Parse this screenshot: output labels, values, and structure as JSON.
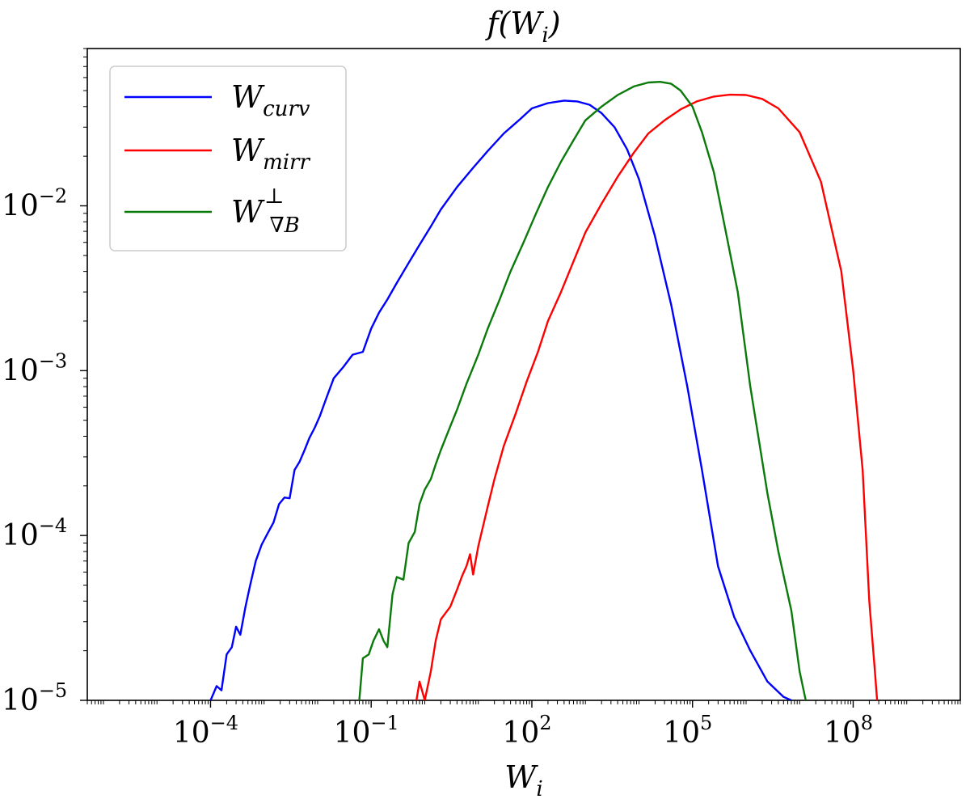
{
  "chart_data": {
    "type": "line",
    "title": "f(W_i)",
    "title_parts": {
      "base": "f(W",
      "sub": "i",
      "close": ")"
    },
    "xlabel": "W_i",
    "xlabel_parts": {
      "base": "W",
      "sub": "i"
    },
    "ylabel": "",
    "xscale": "log",
    "yscale": "log",
    "xlim": [
      5e-07,
      10000000000.0
    ],
    "ylim": [
      1e-05,
      0.09
    ],
    "xticks": [
      {
        "value": 0.0001,
        "base": "10",
        "exp": "−4"
      },
      {
        "value": 0.1,
        "base": "10",
        "exp": "−1"
      },
      {
        "value": 100.0,
        "base": "10",
        "exp": "2"
      },
      {
        "value": 100000.0,
        "base": "10",
        "exp": "5"
      },
      {
        "value": 100000000.0,
        "base": "10",
        "exp": "8"
      }
    ],
    "yticks": [
      {
        "value": 1e-05,
        "base": "10",
        "exp": "−5"
      },
      {
        "value": 0.0001,
        "base": "10",
        "exp": "−4"
      },
      {
        "value": 0.001,
        "base": "10",
        "exp": "−3"
      },
      {
        "value": 0.01,
        "base": "10",
        "exp": "−2"
      }
    ],
    "legend_position": "top-left",
    "series": [
      {
        "name": "W_curv",
        "label_base": "W",
        "label_sub": "curv",
        "label_sup": "",
        "color": "#0000ff",
        "x": [
          0.0001,
          0.00013,
          0.00016,
          0.0002,
          0.00025,
          0.0003,
          0.00036,
          0.00045,
          0.00055,
          0.0007,
          0.0009,
          0.0012,
          0.0015,
          0.0019,
          0.0024,
          0.003,
          0.0037,
          0.0046,
          0.0057,
          0.007,
          0.0088,
          0.011,
          0.015,
          0.02,
          0.03,
          0.045,
          0.07,
          0.1,
          0.14,
          0.2,
          0.3,
          0.5,
          0.8,
          1.3,
          2,
          4,
          8,
          15,
          30,
          60,
          100,
          200,
          400,
          700,
          1200,
          2000,
          3500,
          6000,
          10000,
          20000,
          40000,
          80000,
          150000,
          300000,
          600000,
          1200000,
          2500000,
          5000000,
          7000000
        ],
        "y": [
          1e-05,
          1.22e-05,
          1.15e-05,
          1.9e-05,
          2.1e-05,
          2.8e-05,
          2.5e-05,
          3.7e-05,
          5e-05,
          7e-05,
          8.8e-05,
          0.000105,
          0.00012,
          0.000155,
          0.00017,
          0.000168,
          0.00025,
          0.00028,
          0.00033,
          0.00039,
          0.00045,
          0.00053,
          0.0007,
          0.0009,
          0.00105,
          0.00125,
          0.0013,
          0.0018,
          0.00225,
          0.0027,
          0.0034,
          0.0045,
          0.0058,
          0.0075,
          0.0095,
          0.013,
          0.017,
          0.0215,
          0.0275,
          0.0335,
          0.039,
          0.042,
          0.0435,
          0.043,
          0.041,
          0.0365,
          0.03,
          0.022,
          0.0145,
          0.0065,
          0.0025,
          0.0008,
          0.00025,
          6.5e-05,
          3.2e-05,
          2e-05,
          1.3e-05,
          1.05e-05,
          1e-05
        ]
      },
      {
        "name": "W_mirr",
        "label_base": "W",
        "label_sub": "mirr",
        "label_sup": "",
        "color": "#ff0000",
        "x": [
          0.7,
          0.8,
          1.0,
          1.3,
          1.6,
          2.0,
          3.0,
          4.0,
          5.0,
          6.0,
          7.0,
          8.0,
          10.0,
          15,
          20,
          30,
          50,
          80,
          130,
          200,
          350,
          600,
          1000,
          2000,
          4000,
          8000,
          15000,
          30000,
          60000,
          120000,
          250000,
          500000,
          1000000,
          2000000,
          4000000,
          10000000,
          25000000,
          60000000,
          100000000,
          150000000,
          200000000,
          250000000,
          280000000
        ],
        "y": [
          1e-05,
          1.3e-05,
          1e-05,
          1.5e-05,
          2.3e-05,
          3.1e-05,
          3.7e-05,
          4.7e-05,
          5.7e-05,
          6.5e-05,
          7.7e-05,
          5.8e-05,
          8.6e-05,
          0.00015,
          0.00022,
          0.00035,
          0.00055,
          0.00086,
          0.0013,
          0.002,
          0.003,
          0.0046,
          0.0069,
          0.0103,
          0.015,
          0.021,
          0.0275,
          0.033,
          0.0385,
          0.043,
          0.046,
          0.0472,
          0.047,
          0.0445,
          0.039,
          0.028,
          0.014,
          0.004,
          0.001,
          0.00025,
          4e-05,
          1.6e-05,
          1e-05
        ]
      },
      {
        "name": "W_perp_gradB",
        "label_base": "W",
        "label_sub": "∇B",
        "label_sup": "⊥",
        "color": "#0a7a0a",
        "x": [
          0.06,
          0.07,
          0.09,
          0.11,
          0.14,
          0.17,
          0.2,
          0.25,
          0.3,
          0.4,
          0.5,
          0.65,
          0.8,
          1.0,
          1.3,
          1.6,
          2.0,
          3.0,
          4.0,
          6.0,
          10,
          15,
          25,
          40,
          70,
          120,
          200,
          350,
          600,
          1000,
          2000,
          4000,
          8000,
          15000,
          25000,
          40000,
          60000,
          100000,
          150000,
          250000,
          400000,
          700000,
          1200000,
          2500000,
          4000000,
          7000000,
          10000000,
          13000000
        ],
        "y": [
          1e-05,
          1.8e-05,
          1.9e-05,
          2.3e-05,
          2.7e-05,
          2.3e-05,
          2.1e-05,
          4.4e-05,
          5.6e-05,
          5.4e-05,
          9e-05,
          0.000105,
          0.000155,
          0.00019,
          0.00022,
          0.00027,
          0.00033,
          0.00046,
          0.00058,
          0.00083,
          0.00125,
          0.0018,
          0.0027,
          0.004,
          0.006,
          0.009,
          0.013,
          0.0185,
          0.025,
          0.033,
          0.04,
          0.047,
          0.053,
          0.056,
          0.0565,
          0.055,
          0.05,
          0.04,
          0.028,
          0.016,
          0.0075,
          0.003,
          0.0008,
          0.00018,
          8e-05,
          3.5e-05,
          1.5e-05,
          1e-05
        ]
      }
    ]
  }
}
